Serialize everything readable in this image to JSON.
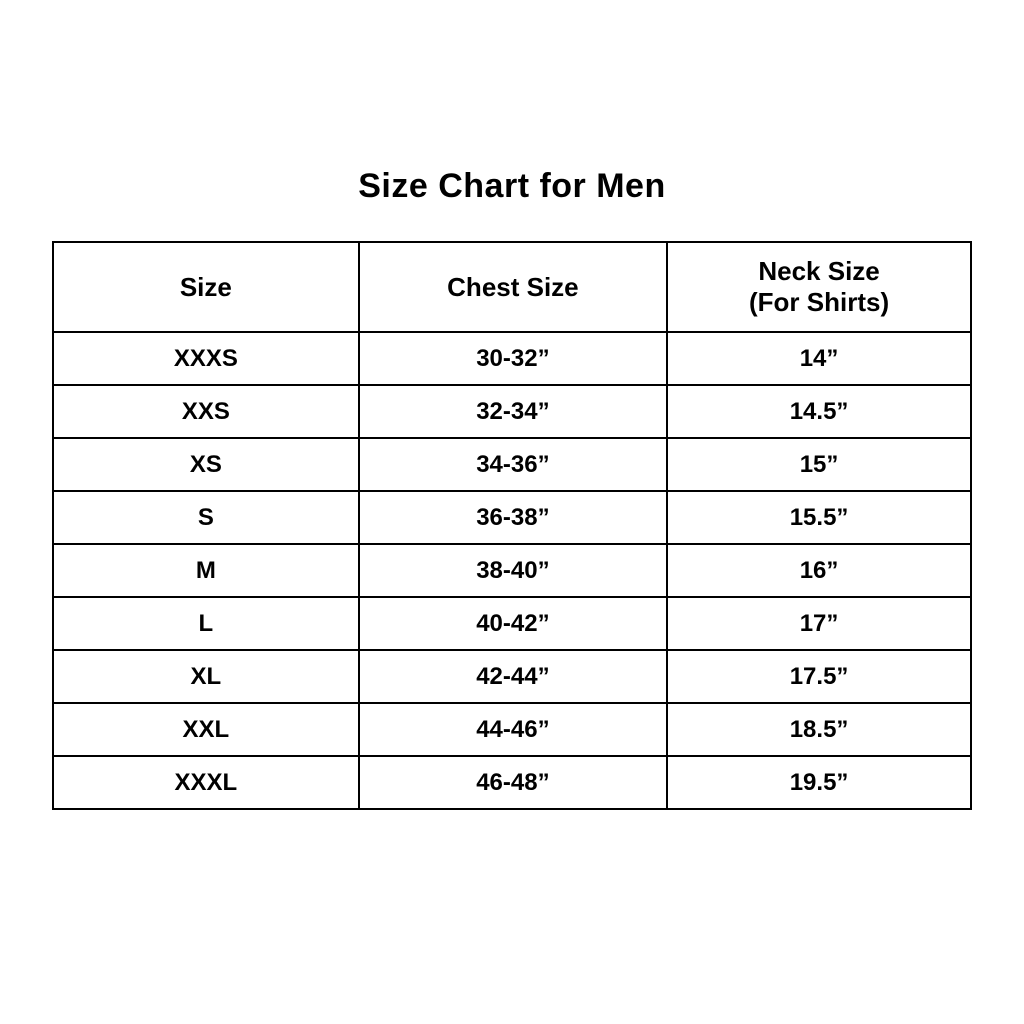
{
  "title": "Size Chart for Men",
  "table": {
    "headers": {
      "size": "Size",
      "chest": "Chest Size",
      "neck_line1": "Neck Size",
      "neck_line2": "(For Shirts)"
    },
    "rows": [
      {
        "size": "XXXS",
        "chest": "30-32”",
        "neck": "14”"
      },
      {
        "size": "XXS",
        "chest": "32-34”",
        "neck": "14.5”"
      },
      {
        "size": "XS",
        "chest": "34-36”",
        "neck": "15”"
      },
      {
        "size": "S",
        "chest": "36-38”",
        "neck": "15.5”"
      },
      {
        "size": "M",
        "chest": "38-40”",
        "neck": "16”"
      },
      {
        "size": "L",
        "chest": "40-42”",
        "neck": "17”"
      },
      {
        "size": "XL",
        "chest": "42-44”",
        "neck": "17.5”"
      },
      {
        "size": "XXL",
        "chest": "44-46”",
        "neck": "18.5”"
      },
      {
        "size": "XXXL",
        "chest": "46-48”",
        "neck": "19.5”"
      }
    ]
  },
  "chart_data": {
    "type": "table",
    "title": "Size Chart for Men",
    "columns": [
      "Size",
      "Chest Size",
      "Neck Size (For Shirts)"
    ],
    "rows": [
      [
        "XXXS",
        "30-32”",
        "14”"
      ],
      [
        "XXS",
        "32-34”",
        "14.5”"
      ],
      [
        "XS",
        "34-36”",
        "15”"
      ],
      [
        "S",
        "36-38”",
        "15.5”"
      ],
      [
        "M",
        "38-40”",
        "16”"
      ],
      [
        "L",
        "40-42”",
        "17”"
      ],
      [
        "XL",
        "42-44”",
        "17.5”"
      ],
      [
        "XXL",
        "44-46”",
        "18.5”"
      ],
      [
        "XXXL",
        "46-48”",
        "19.5”"
      ]
    ],
    "layout": {
      "background": "#ffffff",
      "text_color": "#000000",
      "border_color": "#000000",
      "columns_count": 3,
      "data_rows_count": 9
    }
  }
}
